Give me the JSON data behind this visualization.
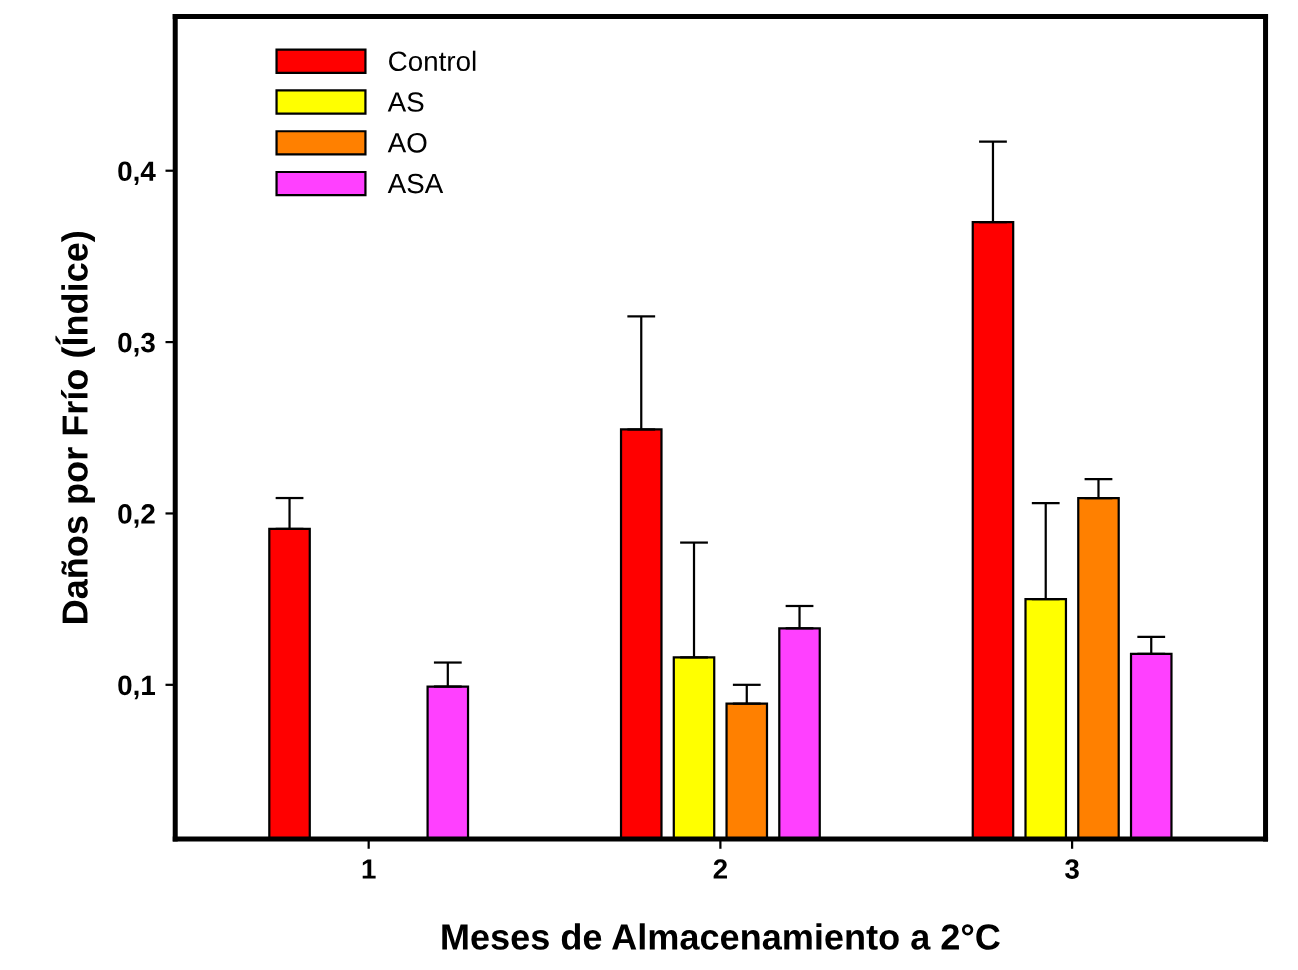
{
  "chart_data": {
    "type": "bar",
    "xlabel": "Meses de Almacenamiento a 2°C",
    "ylabel": "Daños por Frío (Índice)",
    "categories": [
      "1",
      "2",
      "3"
    ],
    "series": [
      {
        "name": "Control",
        "color": "#ff0000",
        "values": [
          0.191,
          0.249,
          0.37
        ],
        "errors": [
          [
            0.191,
            0.209
          ],
          [
            0.249,
            0.315
          ],
          [
            0.37,
            0.417
          ]
        ]
      },
      {
        "name": "AS",
        "color": "#ffff00",
        "values": [
          null,
          0.116,
          0.15
        ],
        "errors": [
          null,
          [
            0.116,
            0.183
          ],
          [
            0.15,
            0.206
          ]
        ]
      },
      {
        "name": "AO",
        "color": "#ff8000",
        "values": [
          null,
          0.089,
          0.209
        ],
        "errors": [
          null,
          [
            0.089,
            0.1
          ],
          [
            0.209,
            0.22
          ]
        ]
      },
      {
        "name": "ASA",
        "color": "#ff40ff",
        "values": [
          0.099,
          0.133,
          0.118
        ],
        "errors": [
          [
            0.099,
            0.113
          ],
          [
            0.133,
            0.146
          ],
          [
            0.118,
            0.128
          ]
        ]
      }
    ],
    "ylim": [
      0.01,
      0.49
    ],
    "yticks": [
      {
        "value": 0.1,
        "label": "0,1"
      },
      {
        "value": 0.2,
        "label": "0,2"
      },
      {
        "value": 0.3,
        "label": "0,3"
      },
      {
        "value": 0.4,
        "label": "0,4"
      }
    ],
    "legend": "top left",
    "grid": false
  }
}
